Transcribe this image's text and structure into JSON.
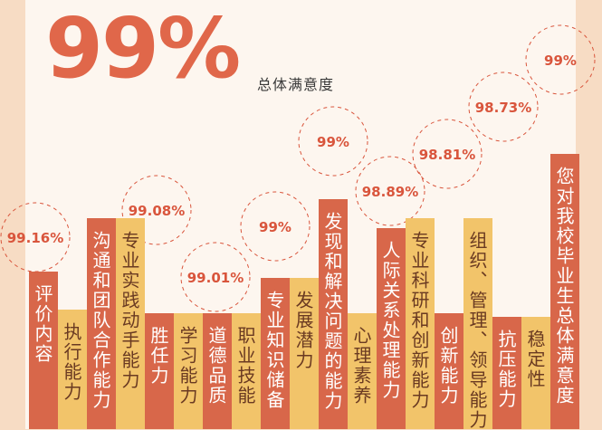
{
  "headline": {
    "value": "99%",
    "subtitle": "总体满意度"
  },
  "colors": {
    "red": "#d8674a",
    "yellow": "#f2c46a",
    "value_text": "#d9553c",
    "bg": "#f7dcc4"
  },
  "chart_data": {
    "type": "bar",
    "categories": [
      "评价内容",
      "执行能力",
      "沟通和团队合作能力",
      "专业实践动手能力",
      "胜任力",
      "学习能力",
      "道德品质",
      "职业技能",
      "专业知识储备",
      "发展潜力",
      "发现和解决问题的能力",
      "心理素养",
      "人际关系处理能力",
      "专业科研和创新能力",
      "创新能力",
      "组织、管理、领导能力",
      "抗压能力",
      "稳定性",
      "您对我校毕业生总体满意度"
    ],
    "values": [
      99.16,
      null,
      99.08,
      99.07,
      null,
      null,
      99.01,
      null,
      99,
      null,
      99,
      null,
      98.89,
      98.81,
      null,
      98.73,
      null,
      null,
      99
    ],
    "value_labels": [
      "99.16%",
      "",
      "99.08%",
      "99.07%",
      "",
      "",
      "99.01%",
      "",
      "99%",
      "",
      "99%",
      "",
      "98.89%",
      "98.81%",
      "",
      "98.73%",
      "",
      "",
      "99%"
    ]
  }
}
